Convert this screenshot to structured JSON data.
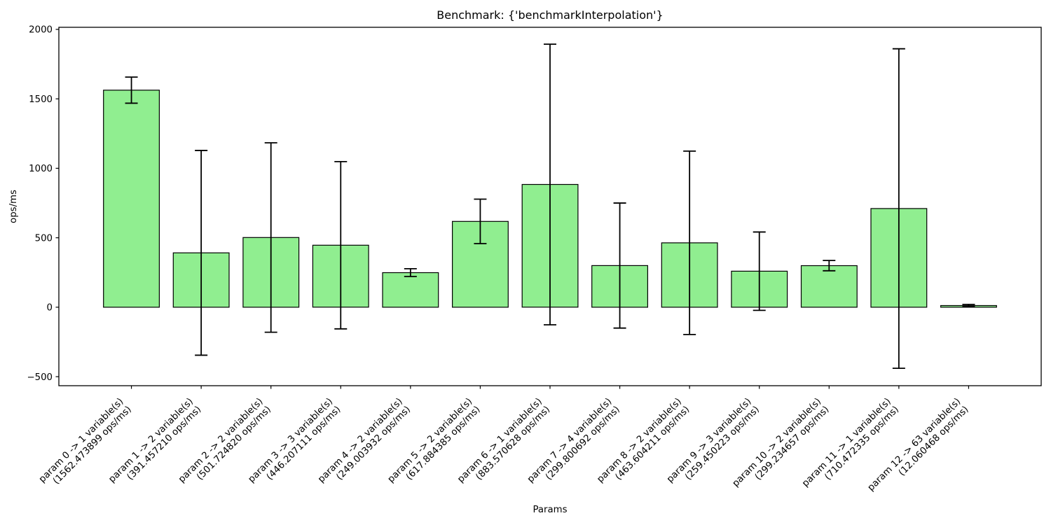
{
  "page": {
    "background": "#ffffff"
  },
  "chart_data": {
    "type": "bar",
    "title": "Benchmark: {'benchmarkInterpolation'}",
    "xlabel": "Params",
    "ylabel": "ops/ms",
    "ylim": [
      -565,
      2015
    ],
    "yticks": [
      -500,
      0,
      500,
      1000,
      1500,
      2000
    ],
    "grid": false,
    "legend": "none",
    "bar_fill": "#90ee90",
    "bar_edge": "#000000",
    "errorbar_color": "#000000",
    "categories": [
      [
        "param 0 -> 1 variable(s)",
        "(1562.473899 ops/ms)"
      ],
      [
        "param 1 -> 2 variable(s)",
        "(391.457210 ops/ms)"
      ],
      [
        "param 2 -> 2 variable(s)",
        "(501.724820 ops/ms)"
      ],
      [
        "param 3 -> 3 variable(s)",
        "(446.207111 ops/ms)"
      ],
      [
        "param 4 -> 2 variable(s)",
        "(249.003932 ops/ms)"
      ],
      [
        "param 5 -> 2 variable(s)",
        "(617.884385 ops/ms)"
      ],
      [
        "param 6 -> 1 variable(s)",
        "(883.570628 ops/ms)"
      ],
      [
        "param 7 -> 4 variable(s)",
        "(299.800692 ops/ms)"
      ],
      [
        "param 8 -> 2 variable(s)",
        "(463.604211 ops/ms)"
      ],
      [
        "param 9 -> 3 variable(s)",
        "(259.450223 ops/ms)"
      ],
      [
        "param 10 -> 2 variable(s)",
        "(299.234657 ops/ms)"
      ],
      [
        "param 11 -> 1 variable(s)",
        "(710.472335 ops/ms)"
      ],
      [
        "param 12 -> 63 variable(s)",
        "(12.060468 ops/ms)"
      ]
    ],
    "values": [
      1562.473899,
      391.45721,
      501.72482,
      446.207111,
      249.003932,
      617.884385,
      883.570628,
      299.800692,
      463.604211,
      259.450223,
      299.234657,
      710.472335,
      12.060468
    ],
    "errors": [
      94,
      737,
      682,
      602,
      28,
      160,
      1010,
      450,
      660,
      282,
      37,
      1150,
      8
    ]
  }
}
